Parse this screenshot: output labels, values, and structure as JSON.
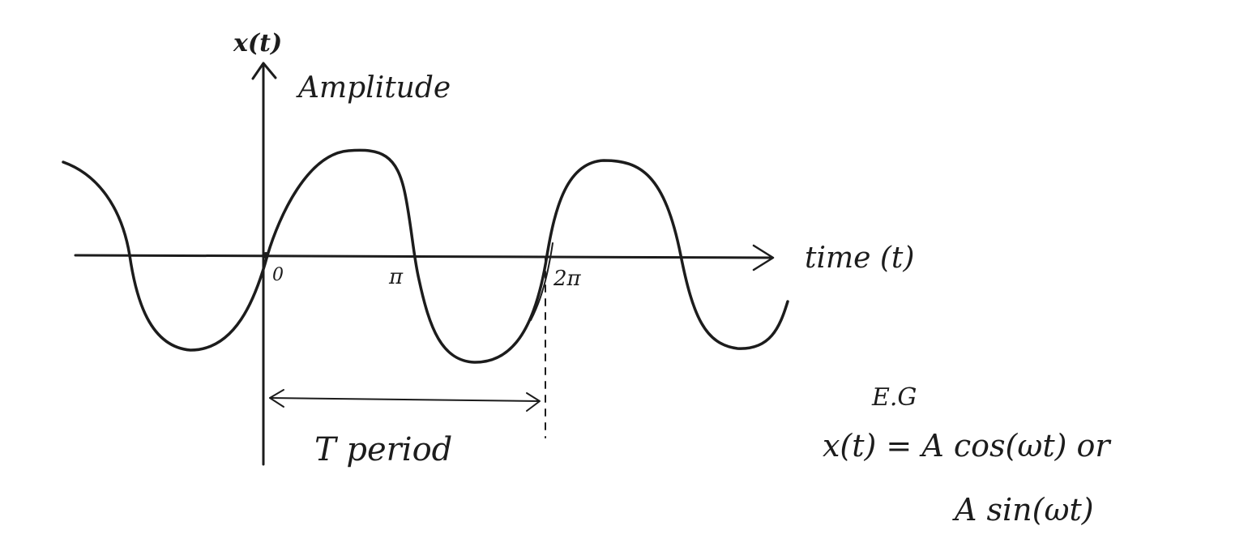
{
  "labels": {
    "y_axis_label": "x(t)",
    "amplitude": "Amplitude",
    "time_axis": "time (t)",
    "origin": "0",
    "pi": "π",
    "two_pi": "2π",
    "period": "T period",
    "eg": "E.G",
    "equation_line1": "x(t) = A cos(ωt) or",
    "equation_line2": "A sin(ωt)"
  },
  "colors": {
    "ink": "#1c1c1c",
    "paper": "#ffffff"
  }
}
